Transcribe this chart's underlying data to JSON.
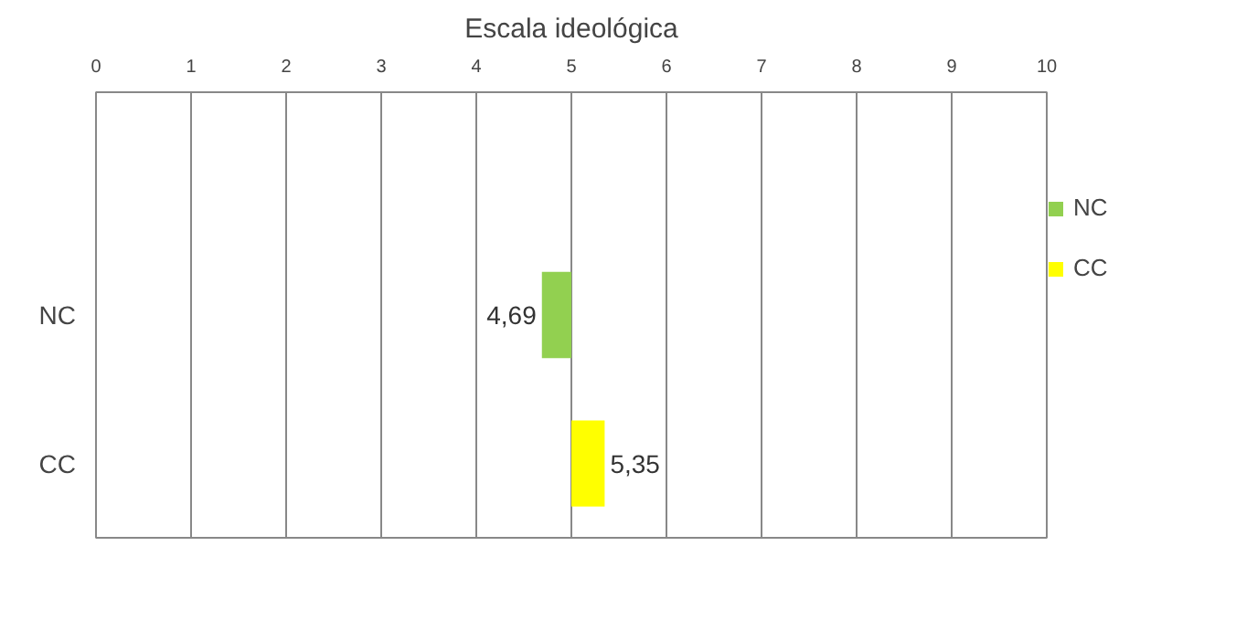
{
  "chart_data": {
    "type": "bar",
    "title": "Escala ideológica",
    "orientation": "horizontal",
    "categories": [
      null,
      "NC",
      "CC"
    ],
    "series": [
      {
        "name": "NC",
        "color": "#92d050",
        "base": [
          null,
          5,
          null
        ],
        "values": [
          null,
          -0.31,
          null
        ],
        "value_labels": [
          null,
          "4,69",
          null
        ]
      },
      {
        "name": "CC",
        "color": "#ffff00",
        "base": [
          null,
          null,
          5
        ],
        "values": [
          null,
          null,
          0.35
        ],
        "value_labels": [
          null,
          null,
          "5,35"
        ]
      }
    ],
    "xlim": [
      0,
      10
    ],
    "xticks": [
      0,
      1,
      2,
      3,
      4,
      5,
      6,
      7,
      8,
      9,
      10
    ],
    "grid": "x",
    "legend": "right"
  }
}
